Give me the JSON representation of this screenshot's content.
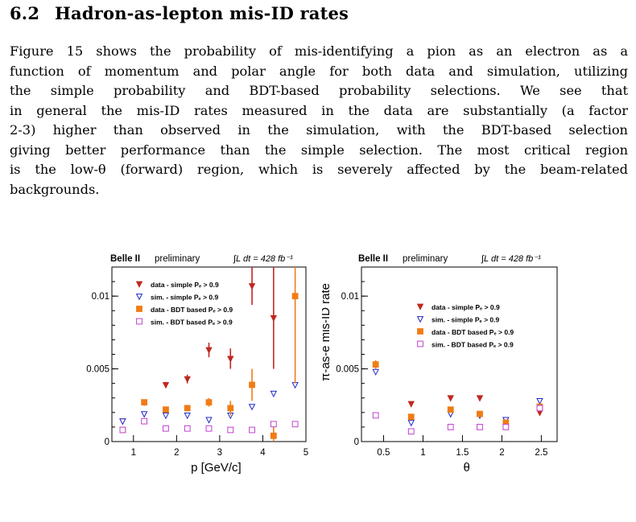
{
  "section": {
    "number": "6.2",
    "title": "Hadron-as-lepton mis-ID rates"
  },
  "paragraph_lines": [
    "Figure 15 shows the probability of mis-identifying a pion as an electron as a",
    "function of momentum and polar angle for both data and simulation, utilizing",
    "the simple probability and BDT-based probability selections. We see that",
    "in general the mis-ID rates measured in the data are substantially (a factor",
    "2-3) higher than observed in the simulation, with the BDT-based selection",
    "giving better performance than the simple selection. The most critical region",
    "is the low-θ (forward) region, which is severely affected by the beam-related",
    "backgrounds."
  ],
  "colors": {
    "data_simple": "#c0281e",
    "sim_simple": "#1e28c8",
    "data_bdt": "#f07c16",
    "sim_bdt": "#c040d0"
  },
  "chart_data": [
    {
      "type": "scatter",
      "header_bold": "Belle II",
      "header_note": "preliminary",
      "lumi_label": "∫L dt = 428 fb⁻¹",
      "xlabel": "p [GeV/c]",
      "ylabel": "π-as-e mis-ID rate",
      "xlim": [
        0.5,
        5.0
      ],
      "ylim": [
        0,
        0.012
      ],
      "xticks": [
        "1",
        "2",
        "3",
        "4",
        "5"
      ],
      "yticks": [
        "0",
        "0.005",
        "0.01"
      ],
      "legend": [
        "data - simple Pₑ > 0.9",
        "sim. - simple Pₑ > 0.9",
        "data - BDT based Pₑ > 0.9",
        "sim. - BDT based Pₑ > 0.9"
      ],
      "legend_position": "top-left",
      "series": [
        {
          "name": "data - simple Pₑ > 0.9",
          "marker": "triangle-down-filled",
          "x": [
            0.75,
            1.25,
            1.75,
            2.25,
            2.75,
            3.25,
            3.75,
            4.25
          ],
          "y": [
            0.0014,
            0.0027,
            0.0039,
            0.0043,
            0.0063,
            0.0057,
            0.0107,
            0.0085
          ],
          "err": [
            0.0001,
            0.00015,
            0.0002,
            0.0003,
            0.0005,
            0.0007,
            0.0013,
            0.0035
          ]
        },
        {
          "name": "sim. - simple Pₑ > 0.9",
          "marker": "triangle-down-open",
          "x": [
            0.75,
            1.25,
            1.75,
            2.25,
            2.75,
            3.25,
            3.75,
            4.25,
            4.75
          ],
          "y": [
            0.0014,
            0.0019,
            0.0018,
            0.0018,
            0.0015,
            0.0018,
            0.0024,
            0.0033,
            0.0039
          ],
          "err": [
            0,
            0,
            0,
            0,
            0,
            0,
            0,
            0,
            0
          ]
        },
        {
          "name": "data - BDT based Pₑ > 0.9",
          "marker": "square-filled",
          "x": [
            0.75,
            1.25,
            1.75,
            2.25,
            2.75,
            3.25,
            3.75,
            4.25,
            4.75
          ],
          "y": [
            0.0008,
            0.0027,
            0.0022,
            0.0023,
            0.0027,
            0.0023,
            0.0039,
            0.0004,
            0.01
          ],
          "err": [
            5e-05,
            0.0001,
            0.0001,
            0.0001,
            0.0003,
            0.0005,
            0.0011,
            0.0009,
            0.006
          ]
        },
        {
          "name": "sim. - BDT based Pₑ > 0.9",
          "marker": "square-open",
          "x": [
            0.75,
            1.25,
            1.75,
            2.25,
            2.75,
            3.25,
            3.75,
            4.25,
            4.75
          ],
          "y": [
            0.0008,
            0.0014,
            0.0009,
            0.0009,
            0.0009,
            0.0008,
            0.0008,
            0.0012,
            0.0012
          ],
          "err": [
            0,
            0,
            0,
            0,
            0,
            0,
            0,
            0,
            0
          ]
        }
      ]
    },
    {
      "type": "scatter",
      "header_bold": "Belle II",
      "header_note": "preliminary",
      "lumi_label": "∫L dt = 428 fb⁻¹",
      "xlabel": "θ",
      "ylabel": "π-as-e mis-ID rate",
      "xlim": [
        0.22,
        2.7
      ],
      "ylim": [
        0,
        0.012
      ],
      "xticks": [
        "0.5",
        "1",
        "1.5",
        "2",
        "2.5"
      ],
      "yticks": [
        "0",
        "0.005",
        "0.01"
      ],
      "legend": [
        "data - simple Pₑ > 0.9",
        "sim. - simple Pₑ > 0.9",
        "data - BDT based Pₑ > 0.9",
        "sim. - BDT based Pₑ > 0.9"
      ],
      "legend_position": "top-right",
      "series": [
        {
          "name": "data - simple Pₑ > 0.9",
          "marker": "triangle-down-filled",
          "x": [
            0.4,
            0.85,
            1.35,
            1.72,
            2.05,
            2.48
          ],
          "y": [
            0.0053,
            0.0026,
            0.003,
            0.003,
            0.0015,
            0.002
          ],
          "err": [
            0.0002,
            0.0001,
            0.0001,
            0.0001,
            0.0001,
            0.0002
          ]
        },
        {
          "name": "sim. - simple Pₑ > 0.9",
          "marker": "triangle-down-open",
          "x": [
            0.4,
            0.85,
            1.35,
            1.72,
            2.05,
            2.48
          ],
          "y": [
            0.0048,
            0.0013,
            0.0019,
            0.0018,
            0.0015,
            0.0028
          ],
          "err": [
            0,
            0,
            0,
            0,
            0,
            0
          ]
        },
        {
          "name": "data - BDT based Pₑ > 0.9",
          "marker": "square-filled",
          "x": [
            0.4,
            0.85,
            1.35,
            1.72,
            2.05,
            2.48
          ],
          "y": [
            0.0053,
            0.0017,
            0.0022,
            0.0019,
            0.0013,
            0.0024
          ],
          "err": [
            0.0003,
            0.0001,
            0.0001,
            0.0001,
            0.0001,
            0.0002
          ]
        },
        {
          "name": "sim. - BDT based Pₑ > 0.9",
          "marker": "square-open",
          "x": [
            0.4,
            0.85,
            1.35,
            1.72,
            2.05,
            2.48
          ],
          "y": [
            0.0018,
            0.0007,
            0.001,
            0.001,
            0.001,
            0.0023
          ],
          "err": [
            0,
            0,
            0,
            0,
            0,
            0
          ]
        }
      ]
    }
  ]
}
